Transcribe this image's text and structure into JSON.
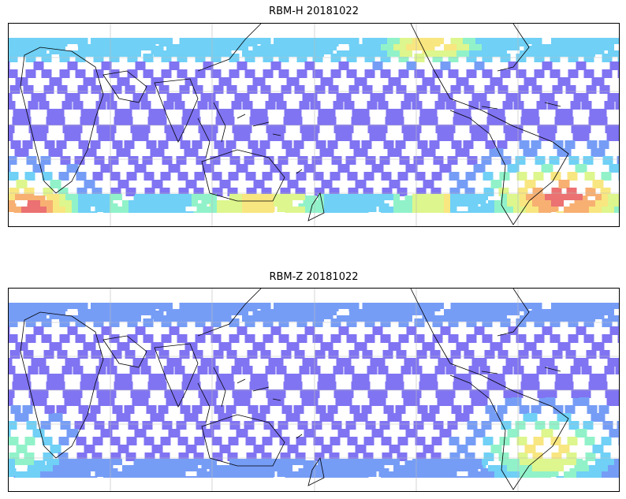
{
  "figure": {
    "panels": [
      {
        "title": "RBM-H 20181022",
        "variable": "RBM-H",
        "date": "20181022"
      },
      {
        "title": "RBM-Z 20181022",
        "variable": "RBM-Z",
        "date": "20181022"
      }
    ],
    "colormap": [
      "#6a5cf0",
      "#5f8cf5",
      "#58c8f5",
      "#7ef0c0",
      "#d8f57a",
      "#f7e26a",
      "#f6a35a",
      "#e8595a"
    ],
    "land_outline_color": "#000000",
    "grid_color": "#bbbbbb"
  }
}
